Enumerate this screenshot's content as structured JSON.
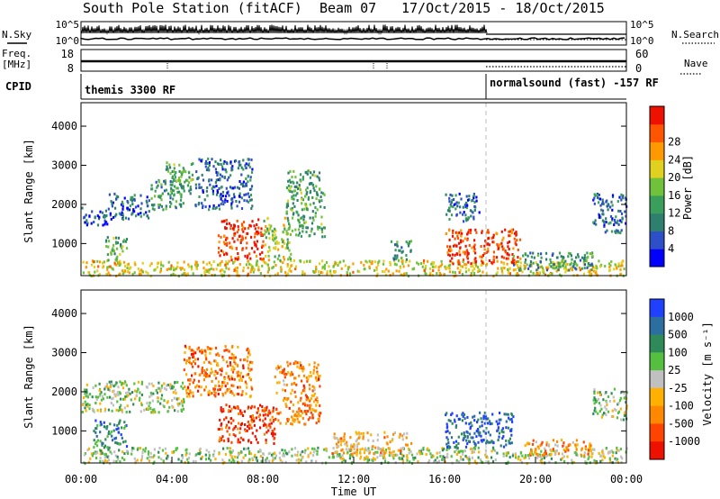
{
  "header": {
    "station": "South Pole Station (fitACF)",
    "beam": "Beam 07",
    "date_range": "17/Oct/2015 - 18/Oct/2015"
  },
  "top_panels": {
    "nsky_label": "N.Sky",
    "nsearch_label": "N.Search",
    "noise_ticks_left": [
      "10^5",
      "10^0"
    ],
    "noise_ticks_right": [
      "10^5",
      "10^0"
    ],
    "freq_label_line1": "Freq.",
    "freq_label_line2": "[MHz]",
    "freq_ticks": [
      "18",
      "8"
    ],
    "nave_label": "Nave",
    "nave_ticks": [
      "60",
      "0"
    ],
    "cpid_label": "CPID",
    "cpid_segments": [
      {
        "label": "themis 3300 RF",
        "start": 0
      },
      {
        "label": "normalsound (fast) -157 RF",
        "start": 18
      }
    ]
  },
  "chart_data": [
    {
      "type": "heatmap",
      "name": "power",
      "ylabel": "Slant Range [km]",
      "yticks": [
        "1000",
        "2000",
        "3000",
        "4000"
      ],
      "ylim": [
        180,
        4600
      ],
      "xlim": [
        0,
        24
      ],
      "colorbar": {
        "label": "Power [dB]",
        "ticks": [
          "4",
          "8",
          "12",
          "16",
          "20",
          "24",
          "28"
        ],
        "colors": [
          "#0000ff",
          "#2d4fc8",
          "#2e7f6e",
          "#3a9f5a",
          "#6fc23a",
          "#e0d020",
          "#ff9900",
          "#ff5500",
          "#ee1100"
        ]
      },
      "regions": [
        {
          "t0": 0.0,
          "t1": 24.0,
          "r0": 200,
          "r1": 600,
          "v": 0.62
        },
        {
          "t0": 0.0,
          "t1": 1.2,
          "r0": 1500,
          "r1": 1950,
          "v": 0.2
        },
        {
          "t0": 1.2,
          "t1": 3.0,
          "r0": 1650,
          "r1": 2300,
          "v": 0.22
        },
        {
          "t0": 3.0,
          "t1": 4.5,
          "r0": 1900,
          "r1": 2700,
          "v": 0.32
        },
        {
          "t0": 3.7,
          "t1": 4.9,
          "r0": 2300,
          "r1": 3100,
          "v": 0.4
        },
        {
          "t0": 5.0,
          "t1": 7.5,
          "r0": 1900,
          "r1": 3200,
          "v": 0.22
        },
        {
          "t0": 6.0,
          "t1": 8.0,
          "r0": 600,
          "r1": 1650,
          "v": 0.9
        },
        {
          "t0": 8.0,
          "t1": 9.2,
          "r0": 600,
          "r1": 1700,
          "v": 0.55
        },
        {
          "t0": 9.0,
          "t1": 10.7,
          "r0": 1200,
          "r1": 2900,
          "v": 0.4
        },
        {
          "t0": 1.0,
          "t1": 2.0,
          "r0": 600,
          "r1": 1200,
          "v": 0.4
        },
        {
          "t0": 13.5,
          "t1": 14.5,
          "r0": 600,
          "r1": 1100,
          "v": 0.35
        },
        {
          "t0": 16.0,
          "t1": 17.5,
          "r0": 1600,
          "r1": 2300,
          "v": 0.22
        },
        {
          "t0": 16.0,
          "t1": 19.3,
          "r0": 500,
          "r1": 1400,
          "v": 0.9
        },
        {
          "t0": 19.0,
          "t1": 22.5,
          "r0": 350,
          "r1": 800,
          "v": 0.35
        },
        {
          "t0": 22.5,
          "t1": 24.0,
          "r0": 1300,
          "r1": 2300,
          "v": 0.22
        }
      ]
    },
    {
      "type": "heatmap",
      "name": "velocity",
      "ylabel": "Slant Range [km]",
      "yticks": [
        "1000",
        "2000",
        "3000",
        "4000"
      ],
      "ylim": [
        180,
        4600
      ],
      "xlim": [
        0,
        24
      ],
      "xlabel": "Time UT",
      "xticks": [
        "00:00",
        "04:00",
        "08:00",
        "12:00",
        "16:00",
        "20:00",
        "00:00"
      ],
      "colorbar": {
        "label": "Velocity [m s⁻¹]",
        "ticks": [
          "1000",
          "500",
          "100",
          "25",
          "-25",
          "-100",
          "-500",
          "-1000"
        ],
        "colors": [
          "#2040ff",
          "#2d6ea0",
          "#2f8a5a",
          "#55c040",
          "#c0c0c0",
          "#ffb000",
          "#ff8800",
          "#ff4400",
          "#ee1100"
        ]
      },
      "regions": [
        {
          "t0": 0.0,
          "t1": 24.0,
          "r0": 200,
          "r1": 600,
          "v": 0.45
        },
        {
          "t0": 0.0,
          "t1": 4.5,
          "r0": 1500,
          "r1": 2300,
          "v": 0.45
        },
        {
          "t0": 4.5,
          "t1": 7.5,
          "r0": 1900,
          "r1": 3200,
          "v": 0.75
        },
        {
          "t0": 6.0,
          "t1": 8.5,
          "r0": 700,
          "r1": 1700,
          "v": 0.88
        },
        {
          "t0": 8.5,
          "t1": 10.5,
          "r0": 1200,
          "r1": 2800,
          "v": 0.72
        },
        {
          "t0": 0.5,
          "t1": 2.0,
          "r0": 600,
          "r1": 1300,
          "v": 0.25
        },
        {
          "t0": 11.0,
          "t1": 14.5,
          "r0": 400,
          "r1": 1000,
          "v": 0.62
        },
        {
          "t0": 16.0,
          "t1": 19.0,
          "r0": 600,
          "r1": 1500,
          "v": 0.15
        },
        {
          "t0": 19.5,
          "t1": 22.5,
          "r0": 400,
          "r1": 800,
          "v": 0.68
        },
        {
          "t0": 22.5,
          "t1": 24.0,
          "r0": 1300,
          "r1": 2100,
          "v": 0.45
        }
      ]
    }
  ]
}
